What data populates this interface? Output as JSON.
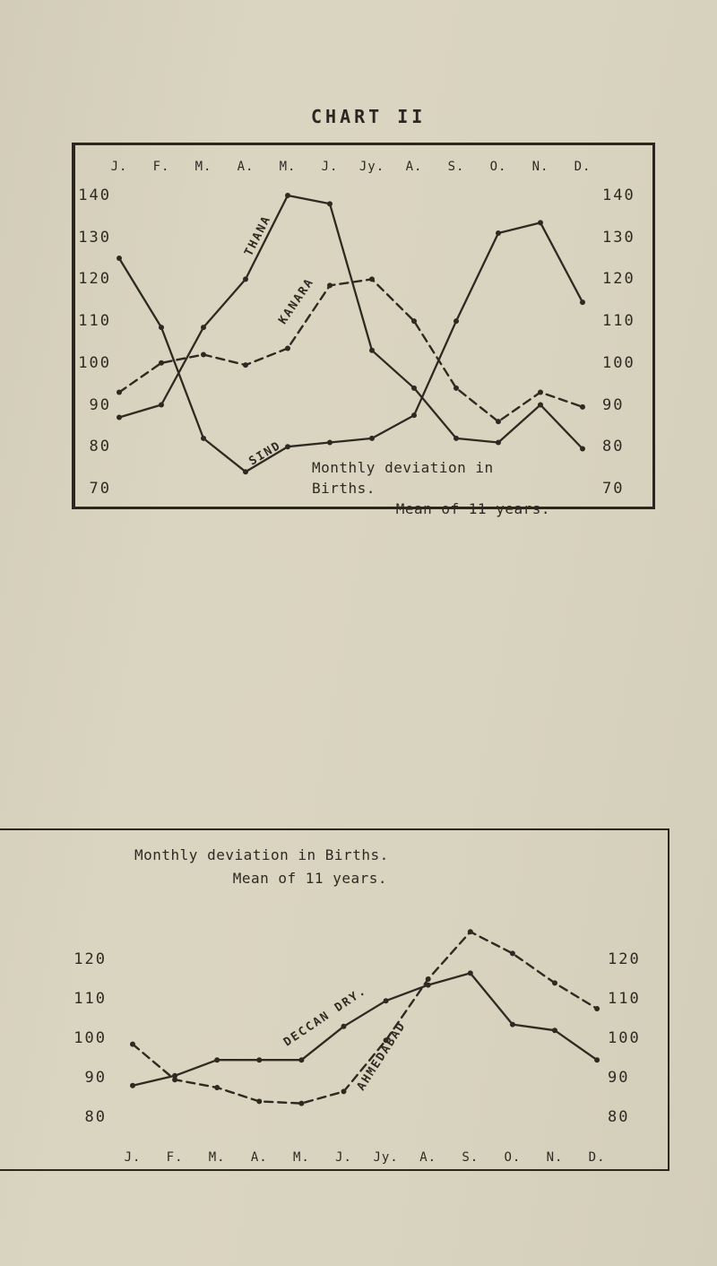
{
  "page": {
    "title": "CHART II"
  },
  "colors": {
    "paper": "#d9d4c0",
    "ink": "#2e2a22"
  },
  "chart_data": [
    {
      "type": "line",
      "caption": {
        "line1": "Monthly deviation in Births.",
        "line2": "Mean of 11 years."
      },
      "categories": [
        "J.",
        "F.",
        "M.",
        "A.",
        "M.",
        "J.",
        "Jy.",
        "A.",
        "S.",
        "O.",
        "N.",
        "D."
      ],
      "months_position": "top",
      "ylim": [
        70,
        140
      ],
      "yticks": [
        140,
        130,
        120,
        110,
        100,
        90,
        80,
        70
      ],
      "ytick_sides": "both",
      "grid": false,
      "series": [
        {
          "name": "THANA",
          "style": "solid",
          "values": [
            87,
            90,
            108.5,
            120,
            140,
            138,
            103,
            94,
            82,
            81,
            90,
            79.5
          ]
        },
        {
          "name": "KANARA",
          "style": "dashed",
          "values": [
            93,
            100,
            102,
            99.5,
            103.5,
            118.5,
            120,
            110,
            94,
            86,
            93,
            89.5
          ]
        },
        {
          "name": "SIND",
          "style": "solid",
          "values": [
            125,
            108.5,
            82,
            74,
            80,
            81,
            82,
            87.5,
            110,
            131,
            133.5,
            114.5
          ]
        }
      ]
    },
    {
      "type": "line",
      "title": {
        "line1": "Monthly deviation in Births.",
        "line2": "Mean of 11 years."
      },
      "categories": [
        "J.",
        "F.",
        "M.",
        "A.",
        "M.",
        "J.",
        "Jy.",
        "A.",
        "S.",
        "O.",
        "N.",
        "D."
      ],
      "months_position": "bottom",
      "ylim": [
        80,
        130
      ],
      "yticks": [
        120,
        110,
        100,
        90,
        80
      ],
      "ytick_sides": "both",
      "grid": false,
      "series": [
        {
          "name": "DECCAN DRY.",
          "style": "solid",
          "values": [
            88,
            90.5,
            94.5,
            94.5,
            94.5,
            103,
            109.5,
            113.5,
            116.5,
            103.5,
            102,
            94.5
          ]
        },
        {
          "name": "AHMEDABAD",
          "style": "dashed",
          "values": [
            98.5,
            89.5,
            87.5,
            84,
            83.5,
            86.5,
            99.5,
            115,
            127,
            121.5,
            114,
            107.5
          ]
        }
      ]
    }
  ]
}
